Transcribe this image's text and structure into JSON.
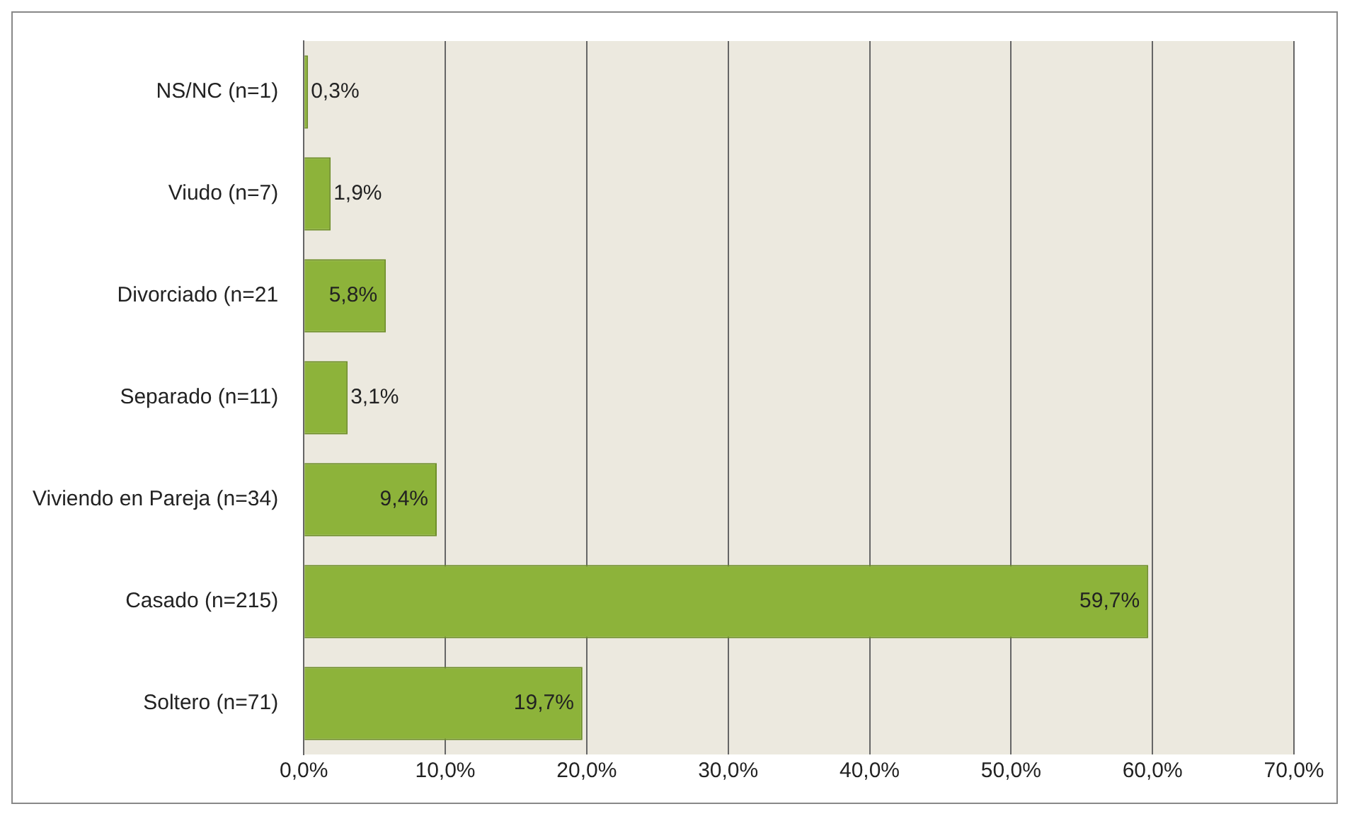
{
  "chart_data": {
    "type": "bar",
    "orientation": "horizontal",
    "categories": [
      "NS/NC (n=1)",
      "Viudo (n=7)",
      "Divorciado (n=21",
      "Separado (n=11)",
      "Viviendo en Pareja (n=34)",
      "Casado (n=215)",
      "Soltero (n=71)"
    ],
    "values": [
      0.3,
      1.9,
      5.8,
      3.1,
      9.4,
      59.7,
      19.7
    ],
    "value_labels": [
      "0,3%",
      "1,9%",
      "5,8%",
      "3,1%",
      "9,4%",
      "59,7%",
      "19,7%"
    ],
    "color": "#8db33a",
    "xlim": [
      0,
      70
    ],
    "xticks": [
      {
        "value": 0,
        "label": "0,0%"
      },
      {
        "value": 10,
        "label": "10,0%"
      },
      {
        "value": 20,
        "label": "20,0%"
      },
      {
        "value": 30,
        "label": "30,0%"
      },
      {
        "value": 40,
        "label": "40,0%"
      },
      {
        "value": 50,
        "label": "50,0%"
      },
      {
        "value": 60,
        "label": "60,0%"
      },
      {
        "value": 70,
        "label": "70,0%"
      }
    ],
    "grid": "x"
  }
}
